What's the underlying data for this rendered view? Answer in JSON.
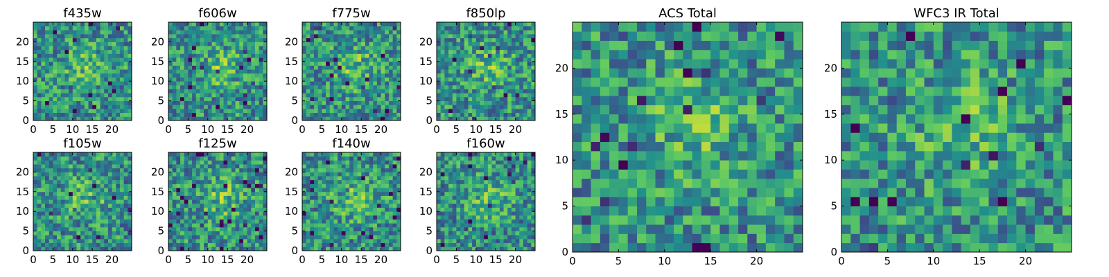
{
  "chart_data": [
    {
      "type": "heatmap",
      "title": "f435w",
      "seed": 11,
      "xlim": [
        0,
        25
      ],
      "ylim": [
        0,
        25
      ],
      "xticks": [
        0,
        5,
        10,
        15,
        20
      ],
      "yticks": [
        0,
        5,
        10,
        15,
        20
      ],
      "grid": false,
      "colormap": "viridis"
    },
    {
      "type": "heatmap",
      "title": "f606w",
      "seed": 23,
      "xlim": [
        0,
        25
      ],
      "ylim": [
        0,
        25
      ],
      "xticks": [
        0,
        5,
        10,
        15,
        20
      ],
      "yticks": [
        0,
        5,
        10,
        15,
        20
      ],
      "grid": false,
      "colormap": "viridis"
    },
    {
      "type": "heatmap",
      "title": "f775w",
      "seed": 37,
      "xlim": [
        0,
        25
      ],
      "ylim": [
        0,
        25
      ],
      "xticks": [
        0,
        5,
        10,
        15,
        20
      ],
      "yticks": [
        0,
        5,
        10,
        15,
        20
      ],
      "grid": false,
      "colormap": "viridis"
    },
    {
      "type": "heatmap",
      "title": "f850lp",
      "seed": 41,
      "xlim": [
        0,
        25
      ],
      "ylim": [
        0,
        25
      ],
      "xticks": [
        0,
        5,
        10,
        15,
        20
      ],
      "yticks": [
        0,
        5,
        10,
        15,
        20
      ],
      "grid": false,
      "colormap": "viridis"
    },
    {
      "type": "heatmap",
      "title": "f105w",
      "seed": 53,
      "xlim": [
        0,
        25
      ],
      "ylim": [
        0,
        25
      ],
      "xticks": [
        0,
        5,
        10,
        15,
        20
      ],
      "yticks": [
        0,
        5,
        10,
        15,
        20
      ],
      "grid": false,
      "colormap": "viridis"
    },
    {
      "type": "heatmap",
      "title": "f125w",
      "seed": 67,
      "xlim": [
        0,
        25
      ],
      "ylim": [
        0,
        25
      ],
      "xticks": [
        0,
        5,
        10,
        15,
        20
      ],
      "yticks": [
        0,
        5,
        10,
        15,
        20
      ],
      "grid": false,
      "colormap": "viridis"
    },
    {
      "type": "heatmap",
      "title": "f140w",
      "seed": 71,
      "xlim": [
        0,
        25
      ],
      "ylim": [
        0,
        25
      ],
      "xticks": [
        0,
        5,
        10,
        15,
        20
      ],
      "yticks": [
        0,
        5,
        10,
        15,
        20
      ],
      "grid": false,
      "colormap": "viridis"
    },
    {
      "type": "heatmap",
      "title": "f160w",
      "seed": 89,
      "xlim": [
        0,
        25
      ],
      "ylim": [
        0,
        25
      ],
      "xticks": [
        0,
        5,
        10,
        15,
        20
      ],
      "yticks": [
        0,
        5,
        10,
        15,
        20
      ],
      "grid": false,
      "colormap": "viridis"
    },
    {
      "type": "heatmap",
      "title": "ACS Total",
      "seed": 97,
      "xlim": [
        0,
        25
      ],
      "ylim": [
        0,
        25
      ],
      "xticks": [
        0,
        5,
        10,
        15,
        20
      ],
      "yticks": [
        0,
        5,
        10,
        15,
        20
      ],
      "grid": false,
      "colormap": "viridis"
    },
    {
      "type": "heatmap",
      "title": "WFC3 IR Total",
      "seed": 103,
      "xlim": [
        0,
        25
      ],
      "ylim": [
        0,
        25
      ],
      "xticks": [
        0,
        5,
        10,
        15,
        20
      ],
      "yticks": [
        0,
        5,
        10,
        15,
        20
      ],
      "grid": false,
      "colormap": "viridis"
    }
  ],
  "colormap_stops": [
    "#440154",
    "#3b528b",
    "#21918c",
    "#5ec962",
    "#fde725"
  ]
}
